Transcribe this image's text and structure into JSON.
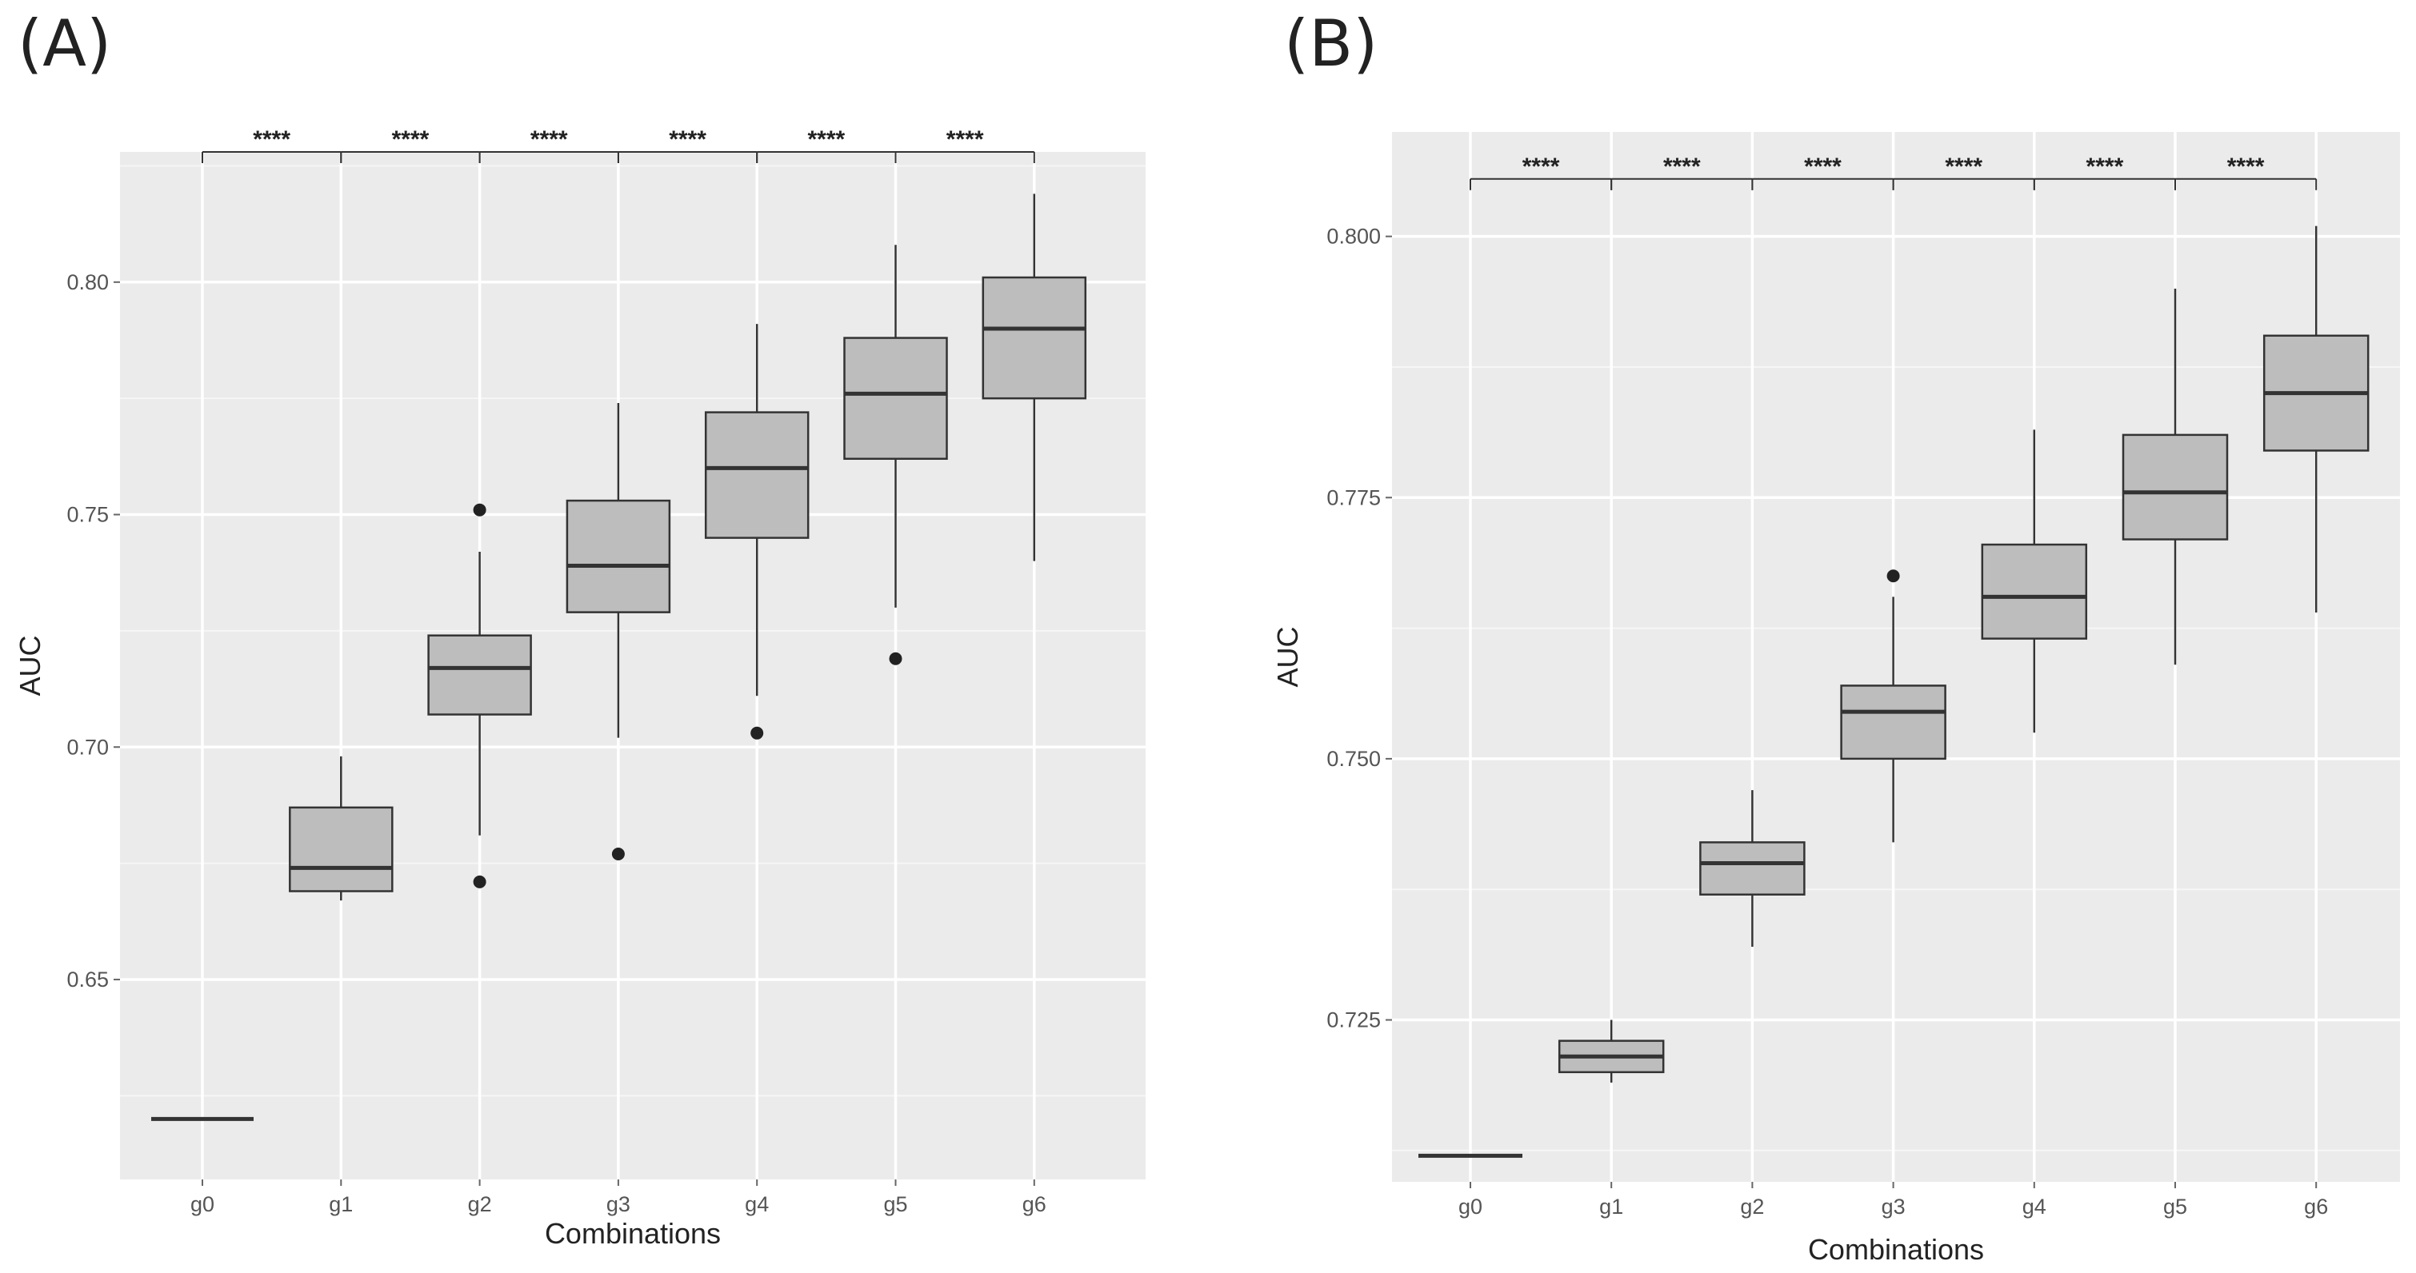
{
  "panels": {
    "a_label": "(A)",
    "b_label": "(B)"
  },
  "chart_data": [
    {
      "type": "box",
      "panel_label": "(A)",
      "xlabel": "Combinations",
      "ylabel": "AUC",
      "categories": [
        "g0",
        "g1",
        "g2",
        "g3",
        "g4",
        "g5",
        "g6"
      ],
      "ylim": [
        0.607,
        0.828
      ],
      "yticks": [
        0.65,
        0.7,
        0.75,
        0.8
      ],
      "ytick_labels": [
        "0.65",
        "0.70",
        "0.75",
        "0.80"
      ],
      "boxes": [
        {
          "category": "g0",
          "min": 0.62,
          "q1": 0.62,
          "median": 0.62,
          "q3": 0.62,
          "max": 0.62,
          "outliers": []
        },
        {
          "category": "g1",
          "min": 0.667,
          "q1": 0.669,
          "median": 0.674,
          "q3": 0.687,
          "max": 0.698,
          "outliers": []
        },
        {
          "category": "g2",
          "min": 0.681,
          "q1": 0.707,
          "median": 0.717,
          "q3": 0.724,
          "max": 0.742,
          "outliers": [
            0.751,
            0.671
          ]
        },
        {
          "category": "g3",
          "min": 0.702,
          "q1": 0.729,
          "median": 0.739,
          "q3": 0.753,
          "max": 0.774,
          "outliers": [
            0.677
          ]
        },
        {
          "category": "g4",
          "min": 0.711,
          "q1": 0.745,
          "median": 0.76,
          "q3": 0.772,
          "max": 0.791,
          "outliers": [
            0.703
          ]
        },
        {
          "category": "g5",
          "min": 0.73,
          "q1": 0.762,
          "median": 0.776,
          "q3": 0.788,
          "max": 0.808,
          "outliers": [
            0.719
          ]
        },
        {
          "category": "g6",
          "min": 0.74,
          "q1": 0.775,
          "median": 0.79,
          "q3": 0.801,
          "max": 0.819,
          "outliers": []
        }
      ],
      "significance": {
        "y": 0.828,
        "labels": [
          "****",
          "****",
          "****",
          "****",
          "****",
          "****"
        ]
      }
    },
    {
      "type": "box",
      "panel_label": "(B)",
      "xlabel": "Combinations",
      "ylabel": "AUC",
      "categories": [
        "g0",
        "g1",
        "g2",
        "g3",
        "g4",
        "g5",
        "g6"
      ],
      "ylim": [
        0.7095,
        0.81
      ],
      "yticks": [
        0.725,
        0.75,
        0.775,
        0.8
      ],
      "ytick_labels": [
        "0.725",
        "0.750",
        "0.775",
        "0.800"
      ],
      "boxes": [
        {
          "category": "g0",
          "min": 0.712,
          "q1": 0.712,
          "median": 0.712,
          "q3": 0.712,
          "max": 0.712,
          "outliers": []
        },
        {
          "category": "g1",
          "min": 0.719,
          "q1": 0.72,
          "median": 0.7215,
          "q3": 0.723,
          "max": 0.725,
          "outliers": []
        },
        {
          "category": "g2",
          "min": 0.732,
          "q1": 0.737,
          "median": 0.74,
          "q3": 0.742,
          "max": 0.747,
          "outliers": []
        },
        {
          "category": "g3",
          "min": 0.742,
          "q1": 0.75,
          "median": 0.7545,
          "q3": 0.757,
          "max": 0.7655,
          "outliers": [
            0.7675
          ]
        },
        {
          "category": "g4",
          "min": 0.7525,
          "q1": 0.7615,
          "median": 0.7655,
          "q3": 0.7705,
          "max": 0.7815,
          "outliers": []
        },
        {
          "category": "g5",
          "min": 0.759,
          "q1": 0.771,
          "median": 0.7755,
          "q3": 0.781,
          "max": 0.795,
          "outliers": []
        },
        {
          "category": "g6",
          "min": 0.764,
          "q1": 0.7795,
          "median": 0.785,
          "q3": 0.7905,
          "max": 0.801,
          "outliers": []
        }
      ],
      "significance": {
        "y": 0.8055,
        "labels": [
          "****",
          "****",
          "****",
          "****",
          "****",
          "****"
        ]
      }
    }
  ]
}
